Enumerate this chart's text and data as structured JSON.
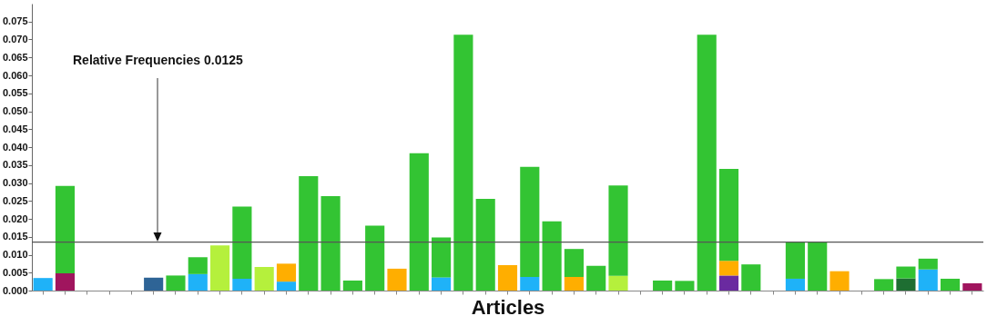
{
  "chart_data": {
    "type": "bar",
    "stacked": true,
    "xlabel": "Articles",
    "annotations": [
      "Relative Frequencies 0.0125"
    ],
    "categories": [
      null,
      null,
      null,
      null,
      null,
      null,
      null,
      null,
      null,
      null,
      null,
      null,
      null,
      null,
      null,
      null,
      null,
      null,
      null,
      null,
      null,
      null,
      null,
      null,
      null,
      null,
      null,
      null,
      null,
      null,
      null,
      null,
      null,
      null,
      null,
      null,
      null,
      null,
      null,
      null,
      null,
      null,
      null
    ],
    "series": [
      {
        "color": "#1fb2f8",
        "values": [
          0.0035,
          null,
          null,
          null,
          null,
          null,
          null,
          0.0046,
          null,
          0.0033,
          null,
          0.0025,
          null,
          null,
          null,
          null,
          null,
          null,
          0.0037,
          null,
          null,
          null,
          0.0038,
          null,
          null,
          null,
          null,
          null,
          null,
          null,
          null,
          null,
          null,
          null,
          0.0033,
          null,
          null,
          null,
          null,
          null,
          0.0059,
          null,
          null
        ]
      },
      {
        "color": "#a0155e",
        "values": [
          null,
          0.0048,
          null,
          null,
          null,
          null,
          null,
          null,
          null,
          null,
          null,
          null,
          null,
          null,
          null,
          null,
          null,
          null,
          null,
          null,
          null,
          null,
          null,
          null,
          null,
          null,
          null,
          null,
          null,
          null,
          null,
          null,
          null,
          null,
          null,
          null,
          null,
          null,
          null,
          null,
          null,
          null,
          0.002
        ]
      },
      {
        "color": "#2e6496",
        "values": [
          null,
          null,
          null,
          null,
          null,
          0.0036,
          null,
          null,
          null,
          null,
          null,
          null,
          null,
          null,
          null,
          null,
          null,
          null,
          null,
          null,
          null,
          null,
          null,
          null,
          null,
          null,
          null,
          null,
          null,
          null,
          null,
          null,
          null,
          null,
          null,
          null,
          null,
          null,
          null,
          null,
          null,
          null,
          null
        ]
      },
      {
        "color": "#6a2aa0",
        "values": [
          null,
          null,
          null,
          null,
          null,
          null,
          null,
          null,
          null,
          null,
          null,
          null,
          null,
          null,
          null,
          null,
          null,
          null,
          null,
          null,
          null,
          null,
          null,
          null,
          null,
          null,
          null,
          null,
          null,
          null,
          null,
          0.0042,
          null,
          null,
          null,
          null,
          null,
          null,
          null,
          null,
          null,
          null,
          null
        ]
      },
      {
        "color": "#1e6e32",
        "values": [
          null,
          null,
          null,
          null,
          null,
          null,
          null,
          null,
          null,
          null,
          null,
          null,
          null,
          null,
          null,
          null,
          null,
          null,
          null,
          null,
          null,
          null,
          null,
          null,
          null,
          null,
          null,
          null,
          null,
          null,
          null,
          null,
          null,
          null,
          null,
          null,
          null,
          null,
          null,
          0.0034,
          null,
          null,
          null
        ]
      },
      {
        "color": "#ffae00",
        "values": [
          null,
          null,
          null,
          null,
          null,
          null,
          null,
          null,
          null,
          null,
          null,
          0.005,
          null,
          null,
          null,
          null,
          0.0061,
          null,
          null,
          null,
          null,
          0.0071,
          null,
          null,
          0.0038,
          null,
          null,
          null,
          null,
          null,
          null,
          0.0041,
          null,
          null,
          null,
          null,
          0.0054,
          null,
          null,
          null,
          null,
          null,
          null
        ]
      },
      {
        "color": "#b5f03c",
        "values": [
          null,
          null,
          null,
          null,
          null,
          null,
          null,
          null,
          0.0126,
          null,
          0.0066,
          null,
          null,
          null,
          null,
          null,
          null,
          null,
          null,
          null,
          null,
          null,
          null,
          null,
          null,
          null,
          0.0041,
          null,
          null,
          null,
          null,
          null,
          null,
          null,
          null,
          null,
          null,
          null,
          null,
          null,
          null,
          null,
          null
        ]
      },
      {
        "color": "#33c433",
        "values": [
          null,
          0.0244,
          null,
          null,
          null,
          null,
          0.0042,
          0.0047,
          null,
          0.0201,
          null,
          null,
          0.0319,
          0.0263,
          0.0028,
          0.0181,
          null,
          0.0383,
          0.0111,
          0.0713,
          0.0256,
          null,
          0.0307,
          0.0193,
          0.0078,
          0.0069,
          0.0252,
          null,
          0.0028,
          0.0027,
          0.0713,
          0.0256,
          0.0073,
          null,
          0.0102,
          0.0135,
          null,
          null,
          0.0032,
          0.0033,
          0.003,
          0.0033,
          null
        ]
      }
    ],
    "ylim": [
      0,
      0.08
    ],
    "yticks": [
      {
        "value": 0,
        "label": "0.000"
      },
      {
        "value": 0.005,
        "label": "0.005"
      },
      {
        "value": 0.01,
        "label": "0.010"
      },
      {
        "value": 0.015,
        "label": "0.015"
      },
      {
        "value": 0.02,
        "label": "0.020"
      },
      {
        "value": 0.025,
        "label": "0.025"
      },
      {
        "value": 0.03,
        "label": "0.030"
      },
      {
        "value": 0.035,
        "label": "0.035"
      },
      {
        "value": 0.04,
        "label": "0.040"
      },
      {
        "value": 0.045,
        "label": "0.045"
      },
      {
        "value": 0.05,
        "label": "0.050"
      },
      {
        "value": 0.055,
        "label": "0.055"
      },
      {
        "value": 0.06,
        "label": "0.060"
      },
      {
        "value": 0.065,
        "label": "0.065"
      },
      {
        "value": 0.07,
        "label": "0.070"
      },
      {
        "value": 0.075,
        "label": "0.075"
      }
    ],
    "ref_lines": [
      {
        "axis": "y",
        "value": 0.0135,
        "color": "#555555"
      }
    ]
  }
}
